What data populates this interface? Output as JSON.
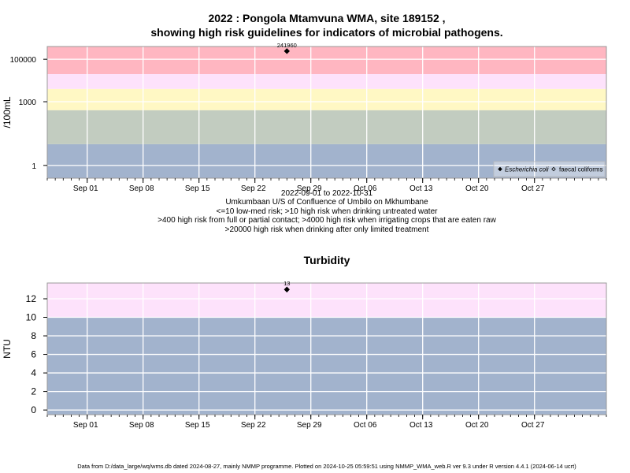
{
  "title": {
    "line1": "2022 : Pongola Mtamvuna WMA, site 189152 ,",
    "line2": "showing high risk guidelines for indicators of microbial pathogens."
  },
  "top_notes": [
    "2022-09-01 to 2022-10-31",
    "Umkumbaan U/S of Confluence of Umbilo on Mkhumbane",
    "<=10 low-med risk; >10 high risk when drinking untreated water",
    ">400 high risk from full or partial contact; >4000 high risk when irrigating crops that are eaten raw",
    ">20000 high risk when drinking after only limited treatment"
  ],
  "turbidity_title": "Turbidity",
  "footer": "Data from D:/data_large/wq/wms.db dated 2024-08-27, mainly NMMP programme. Plotted on 2024-10-25 05:59:51 using NMMP_WMA_web.R ver 9.3 under R version 4.4.1 (2024-06-14 ucrt)",
  "colors": {
    "red_band": "#ffb6c1",
    "pink_band": "#fde2fb",
    "yellow_band": "#fff8c4",
    "sage_band": "#c2ccc0",
    "blue_band": "#a2b3cd",
    "grid": "#ffffff",
    "point": "#000000"
  },
  "chart_data": [
    {
      "type": "scatter",
      "name": "microbial",
      "ylabel": "/100mL",
      "y_scale": "log10",
      "x_range": [
        "2022-08-27",
        "2022-11-05"
      ],
      "y_range_log10": [
        -0.6,
        5.6
      ],
      "y_ticks": [
        1,
        1000,
        100000
      ],
      "y_tick_labels": [
        "1",
        "1000",
        "100000"
      ],
      "x_ticks": [
        "2022-09-01",
        "2022-09-08",
        "2022-09-15",
        "2022-09-22",
        "2022-09-29",
        "2022-10-06",
        "2022-10-13",
        "2022-10-20",
        "2022-10-27"
      ],
      "x_tick_labels": [
        "Sep 01",
        "Sep 08",
        "Sep 15",
        "Sep 22",
        "Sep 29",
        "Oct 06",
        "Oct 13",
        "Oct 20",
        "Oct 27"
      ],
      "bands": [
        {
          "from": 0.25,
          "to": 10,
          "color": "blue_band"
        },
        {
          "from": 10,
          "to": 400,
          "color": "sage_band"
        },
        {
          "from": 400,
          "to": 4000,
          "color": "yellow_band"
        },
        {
          "from": 4000,
          "to": 20000,
          "color": "pink_band"
        },
        {
          "from": 20000,
          "to": 400000,
          "color": "red_band"
        }
      ],
      "series": [
        {
          "name": "Escherichia coli",
          "marker": "filled-diamond",
          "points": [
            {
              "x": "2022-09-26",
              "y": 241960,
              "label": "241960"
            }
          ]
        },
        {
          "name": "faecal coliforms",
          "marker": "open-diamond",
          "points": []
        }
      ],
      "legend_position": "bottom-right",
      "grid": true
    },
    {
      "type": "scatter",
      "name": "turbidity",
      "ylabel": "NTU",
      "x_range": [
        "2022-08-27",
        "2022-11-05"
      ],
      "y_range": [
        -0.5,
        13.7
      ],
      "y_ticks": [
        0,
        2,
        4,
        6,
        8,
        10,
        12
      ],
      "y_tick_labels": [
        "0",
        "2",
        "4",
        "6",
        "8",
        "10",
        "12"
      ],
      "x_ticks": [
        "2022-09-01",
        "2022-09-08",
        "2022-09-15",
        "2022-09-22",
        "2022-09-29",
        "2022-10-06",
        "2022-10-13",
        "2022-10-20",
        "2022-10-27"
      ],
      "x_tick_labels": [
        "Sep 01",
        "Sep 08",
        "Sep 15",
        "Sep 22",
        "Sep 29",
        "Oct 06",
        "Oct 13",
        "Oct 20",
        "Oct 27"
      ],
      "bands": [
        {
          "from": -0.5,
          "to": 10,
          "color": "blue_band"
        },
        {
          "from": 10,
          "to": 13.7,
          "color": "pink_band"
        }
      ],
      "series": [
        {
          "name": "Turbidity",
          "marker": "filled-diamond",
          "points": [
            {
              "x": "2022-09-26",
              "y": 13,
              "label": "13"
            }
          ]
        }
      ],
      "grid": true
    }
  ]
}
